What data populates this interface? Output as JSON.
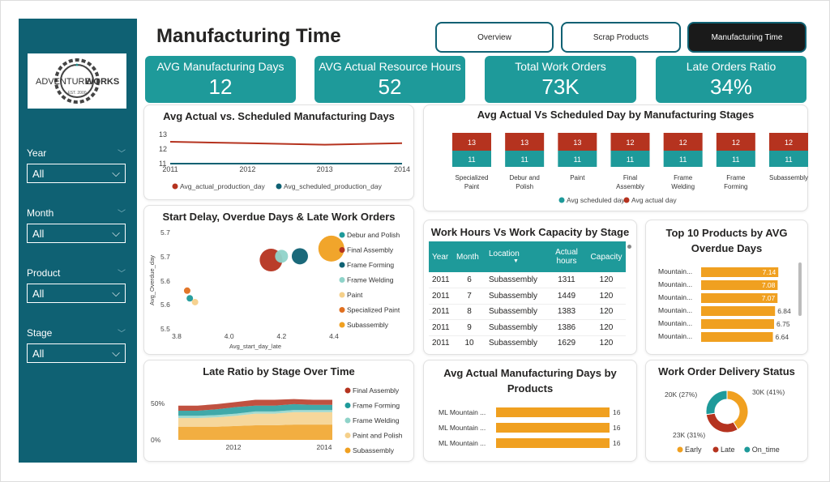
{
  "page": {
    "title": "Manufacturing Time"
  },
  "nav": [
    {
      "label": "Overview",
      "active": false
    },
    {
      "label": "Scrap Products",
      "active": false
    },
    {
      "label": "Manufacturing Time",
      "active": true
    }
  ],
  "brand": {
    "name_a": "ADVENTURE",
    "name_b": "WORKS",
    "est": "EST. 2000"
  },
  "filters": [
    {
      "label": "Year",
      "value": "All"
    },
    {
      "label": "Month",
      "value": "All"
    },
    {
      "label": "Product",
      "value": "All"
    },
    {
      "label": "Stage",
      "value": "All"
    }
  ],
  "kpis": [
    {
      "label": "AVG Manufacturing Days",
      "value": "12"
    },
    {
      "label": "AVG Actual Resource Hours",
      "value": "52"
    },
    {
      "label": "Total Work Orders",
      "value": "73K"
    },
    {
      "label": "Late Orders Ratio",
      "value": "34%"
    }
  ],
  "colors": {
    "teal": "#1e9a9a",
    "red": "#b5331f",
    "orange": "#f0a020",
    "dark_teal": "#0f6173"
  },
  "chart_data": [
    {
      "type": "line",
      "title": "Avg Actual vs. Scheduled Manufacturing Days",
      "x": [
        "2011",
        "2012",
        "2013",
        "2014"
      ],
      "y_ticks": [
        "13",
        "12",
        "11"
      ],
      "ylim": [
        11,
        13
      ],
      "series": [
        {
          "name": "Avg_actual_production_day",
          "values": [
            12.5,
            12.4,
            12.3,
            12.4
          ]
        },
        {
          "name": "Avg_scheduled_production_day",
          "values": [
            11,
            11,
            11,
            11
          ]
        }
      ],
      "legend": "bottom"
    },
    {
      "type": "bar",
      "title": "Avg Actual Vs Scheduled Day by Manufacturing Stages",
      "categories": [
        "Specialized Paint",
        "Debur and Polish",
        "Paint",
        "Final Assembly",
        "Frame Welding",
        "Frame Forming",
        "Subassembly"
      ],
      "series": [
        {
          "name": "Avg scheduled day",
          "values": [
            11,
            11,
            11,
            11,
            11,
            11,
            11
          ]
        },
        {
          "name": "Avg actual day",
          "values": [
            13,
            13,
            13,
            12,
            12,
            12,
            12
          ]
        }
      ],
      "legend": "bottom"
    },
    {
      "type": "scatter",
      "title": "Start Delay, Overdue Days & Late Work Orders",
      "xlabel": "Avg_start_day_late",
      "ylabel": "Avg_Overdue_day",
      "x_ticks": [
        "3.8",
        "4.0",
        "4.2",
        "4.4"
      ],
      "y_ticks": [
        "5.7",
        "5.7",
        "5.6",
        "5.6",
        "5.5"
      ],
      "xlim": [
        3.8,
        4.4
      ],
      "ylim": [
        5.5,
        5.75
      ],
      "series": [
        {
          "name": "Debur and Polish",
          "color": "#1e9a9a",
          "x": 3.85,
          "y": 5.58,
          "size": 4
        },
        {
          "name": "Final Assembly",
          "color": "#b5331f",
          "x": 4.16,
          "y": 5.68,
          "size": 14
        },
        {
          "name": "Frame Forming",
          "color": "#0f6173",
          "x": 4.27,
          "y": 5.69,
          "size": 10
        },
        {
          "name": "Frame Welding",
          "color": "#8fd3c9",
          "x": 4.2,
          "y": 5.69,
          "size": 8
        },
        {
          "name": "Paint",
          "color": "#f5d08a",
          "x": 3.87,
          "y": 5.57,
          "size": 4
        },
        {
          "name": "Specialized Paint",
          "color": "#e07020",
          "x": 3.84,
          "y": 5.6,
          "size": 4
        },
        {
          "name": "Subassembly",
          "color": "#f0a020",
          "x": 4.39,
          "y": 5.71,
          "size": 16
        }
      ],
      "legend": "right"
    },
    {
      "type": "table",
      "title": "Work Hours Vs Work Capacity by Stage",
      "columns": [
        "Year",
        "Month",
        "Location",
        "Actual hours",
        "Capacity"
      ],
      "rows": [
        [
          "2011",
          "6",
          "Subassembly",
          "1311",
          "120"
        ],
        [
          "2011",
          "7",
          "Subassembly",
          "1449",
          "120"
        ],
        [
          "2011",
          "8",
          "Subassembly",
          "1383",
          "120"
        ],
        [
          "2011",
          "9",
          "Subassembly",
          "1386",
          "120"
        ],
        [
          "2011",
          "10",
          "Subassembly",
          "1629",
          "120"
        ]
      ]
    },
    {
      "type": "bar",
      "title": "Top 10 Products by AVG Overdue Days",
      "categories": [
        "Mountain...",
        "Mountain...",
        "Mountain...",
        "Mountain...",
        "Mountain...",
        "Mountain..."
      ],
      "values": [
        7.14,
        7.08,
        7.07,
        6.84,
        6.75,
        6.64
      ],
      "orientation": "horizontal"
    },
    {
      "type": "area",
      "title": "Late Ratio by Stage Over Time",
      "x_ticks": [
        "2012",
        "2014"
      ],
      "y_ticks": [
        "50%",
        "0%"
      ],
      "ylim": [
        0,
        0.6
      ],
      "series": [
        {
          "name": "Final Assembly",
          "color": "#b5331f"
        },
        {
          "name": "Frame Forming",
          "color": "#1e9a9a"
        },
        {
          "name": "Frame Welding",
          "color": "#8fd3c9"
        },
        {
          "name": "Paint and Polish",
          "color": "#f5d08a"
        },
        {
          "name": "Subassembly",
          "color": "#f0a020"
        }
      ],
      "legend": "right"
    },
    {
      "type": "bar",
      "title": "Avg Actual Manufacturing Days by Products",
      "categories": [
        "ML Mountain ...",
        "ML Mountain ...",
        "ML Mountain ..."
      ],
      "values": [
        16,
        16,
        16
      ],
      "orientation": "horizontal"
    },
    {
      "type": "pie",
      "title": "Work Order Delivery Status",
      "series": [
        {
          "name": "Early",
          "value": "30K",
          "pct": 41,
          "color": "#f0a020",
          "label": "30K (41%)"
        },
        {
          "name": "Late",
          "value": "23K",
          "pct": 31,
          "color": "#b5331f",
          "label": "23K (31%)"
        },
        {
          "name": "On_time",
          "value": "20K",
          "pct": 27,
          "color": "#1e9a9a",
          "label": "20K (27%)"
        }
      ],
      "legend": "bottom"
    }
  ]
}
